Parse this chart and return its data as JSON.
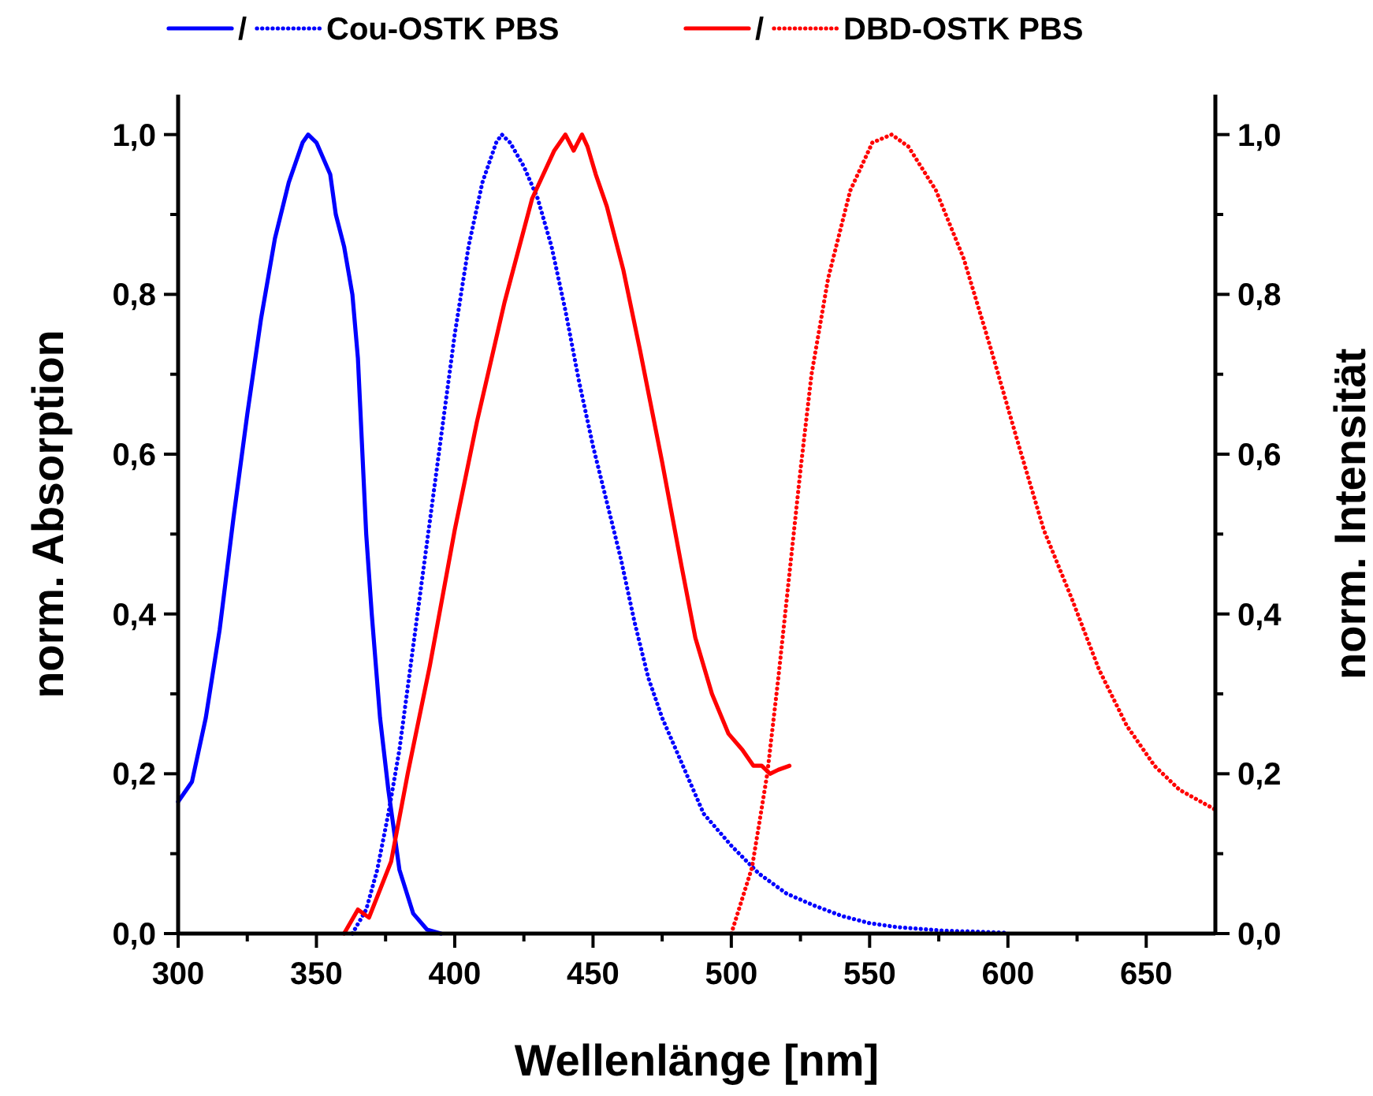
{
  "chart_data": {
    "type": "line",
    "xlabel": "Wellenlänge [nm]",
    "ylabel": "norm. Absorption",
    "y2label": "norm. Intensität",
    "legend": "top",
    "grid": false,
    "xlim": [
      300,
      675
    ],
    "xticks": [
      300,
      {
        "value": 325,
        "label": null
      },
      350,
      {
        "value": 375,
        "label": null
      },
      400,
      {
        "value": 425,
        "label": null
      },
      450,
      {
        "value": 475,
        "label": null
      },
      500,
      {
        "value": 525,
        "label": null
      },
      550,
      {
        "value": 575,
        "label": null
      },
      600,
      {
        "value": 625,
        "label": null
      },
      650
    ],
    "ylim": [
      0,
      1.05
    ],
    "yticks": [
      {
        "value": 0,
        "label": "0,0"
      },
      {
        "value": 0.1,
        "label": null
      },
      {
        "value": 0.2,
        "label": "0,2"
      },
      {
        "value": 0.3,
        "label": null
      },
      {
        "value": 0.4,
        "label": "0,4"
      },
      {
        "value": 0.5,
        "label": null
      },
      {
        "value": 0.6,
        "label": "0,6"
      },
      {
        "value": 0.7,
        "label": null
      },
      {
        "value": 0.8,
        "label": "0,8"
      },
      {
        "value": 0.9,
        "label": null
      },
      {
        "value": 1,
        "label": "1,0"
      }
    ],
    "y2lim": [
      0,
      1.05
    ],
    "y2ticks": [
      {
        "value": 0,
        "label": "0,0"
      },
      {
        "value": 0.1,
        "label": null
      },
      {
        "value": 0.2,
        "label": "0,2"
      },
      {
        "value": 0.3,
        "label": null
      },
      {
        "value": 0.4,
        "label": "0,4"
      },
      {
        "value": 0.5,
        "label": null
      },
      {
        "value": 0.6,
        "label": "0,6"
      },
      {
        "value": 0.7,
        "label": null
      },
      {
        "value": 0.8,
        "label": "0,8"
      },
      {
        "value": 0.9,
        "label": null
      },
      {
        "value": 1,
        "label": "1,0"
      }
    ],
    "series": [
      {
        "name": "/",
        "color": "#0000ff",
        "line_style": "solid",
        "x": [
          300,
          305,
          310,
          315,
          320,
          325,
          330,
          335,
          340,
          345,
          347,
          350,
          355,
          357,
          360,
          363,
          365,
          368,
          370,
          373,
          376,
          380,
          385,
          390,
          395
        ],
        "values": [
          0.165,
          0.19,
          0.27,
          0.38,
          0.52,
          0.65,
          0.77,
          0.87,
          0.94,
          0.99,
          1.0,
          0.99,
          0.95,
          0.9,
          0.86,
          0.8,
          0.72,
          0.5,
          0.4,
          0.27,
          0.18,
          0.08,
          0.025,
          0.005,
          0
        ]
      },
      {
        "name": "Cou-OSTK PBS",
        "color": "#0000ff",
        "line_style": "dotted",
        "x": [
          363,
          368,
          372,
          376,
          380,
          385,
          390,
          395,
          400,
          405,
          410,
          415,
          417,
          420,
          425,
          430,
          435,
          440,
          445,
          450,
          455,
          460,
          465,
          470,
          475,
          480,
          485,
          490,
          495,
          500,
          510,
          520,
          530,
          540,
          550,
          560,
          575,
          600
        ],
        "values": [
          0,
          0.03,
          0.08,
          0.15,
          0.23,
          0.36,
          0.49,
          0.62,
          0.75,
          0.86,
          0.94,
          0.99,
          1.0,
          0.99,
          0.96,
          0.92,
          0.86,
          0.78,
          0.69,
          0.61,
          0.54,
          0.47,
          0.39,
          0.32,
          0.27,
          0.23,
          0.19,
          0.15,
          0.13,
          0.11,
          0.075,
          0.05,
          0.035,
          0.022,
          0.013,
          0.008,
          0.004,
          0.001
        ]
      },
      {
        "name": "/",
        "color": "#ff0000",
        "line_style": "solid",
        "x": [
          360,
          365,
          369,
          377,
          383,
          391,
          400,
          408,
          418,
          428,
          436,
          440,
          443,
          446,
          448,
          451,
          455,
          461,
          467,
          475,
          482,
          487,
          493,
          499,
          504,
          508,
          511,
          514,
          517,
          521
        ],
        "values": [
          0,
          0.03,
          0.02,
          0.09,
          0.2,
          0.335,
          0.505,
          0.64,
          0.79,
          0.92,
          0.98,
          1.0,
          0.98,
          1.0,
          0.985,
          0.95,
          0.91,
          0.83,
          0.73,
          0.59,
          0.46,
          0.37,
          0.3,
          0.25,
          0.23,
          0.21,
          0.21,
          0.2,
          0.205,
          0.21
        ]
      },
      {
        "name": "DBD-OSTK PBS",
        "color": "#ff0000",
        "line_style": "dotted",
        "x": [
          500,
          507.5,
          513,
          517,
          521,
          525,
          529,
          535,
          543,
          551,
          558,
          564,
          574,
          584,
          594,
          604,
          613,
          623,
          633,
          643,
          653,
          662,
          675
        ],
        "values": [
          0,
          0.083,
          0.2,
          0.32,
          0.45,
          0.58,
          0.7,
          0.82,
          0.93,
          0.99,
          1.0,
          0.985,
          0.93,
          0.845,
          0.73,
          0.61,
          0.505,
          0.42,
          0.33,
          0.26,
          0.21,
          0.18,
          0.155
        ]
      }
    ]
  }
}
